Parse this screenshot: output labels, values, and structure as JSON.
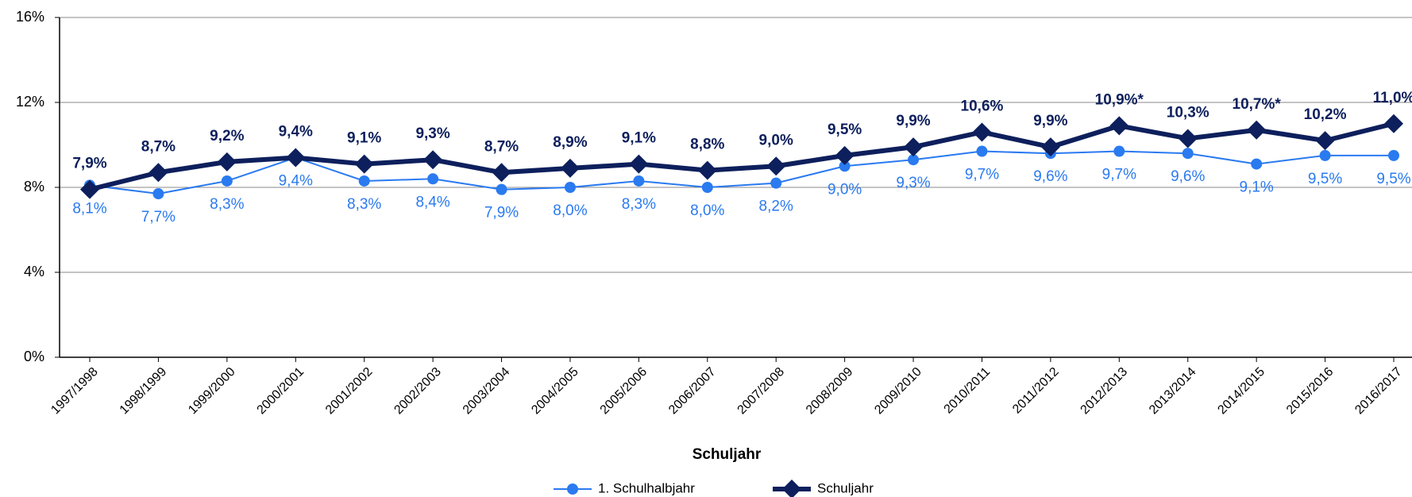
{
  "chart_data": {
    "type": "line",
    "x_label": "Schuljahr",
    "categories": [
      "1997/1998",
      "1998/1999",
      "1999/2000",
      "2000/2001",
      "2001/2002",
      "2002/2003",
      "2003/2004",
      "2004/2005",
      "2005/2006",
      "2006/2007",
      "2007/2008",
      "2008/2009",
      "2009/2010",
      "2010/2011",
      "2011/2012",
      "2012/2013",
      "2013/2014",
      "2014/2015",
      "2015/2016",
      "2016/2017"
    ],
    "series": [
      {
        "name": "1. Schulhalbjahr",
        "color": "#2a7af0",
        "marker": "circle",
        "values": [
          8.1,
          7.7,
          8.3,
          9.4,
          8.3,
          8.4,
          7.9,
          8.0,
          8.3,
          8.0,
          8.2,
          9.0,
          9.3,
          9.7,
          9.6,
          9.7,
          9.6,
          9.1,
          9.5,
          9.5
        ],
        "value_labels": [
          "8,1%",
          "7,7%",
          "8,3%",
          "9,4%",
          "8,3%",
          "8,4%",
          "7,9%",
          "8,0%",
          "8,3%",
          "8,0%",
          "8,2%",
          "9,0%",
          "9,3%",
          "9,7%",
          "9,6%",
          "9,7%",
          "9,6%",
          "9,1%",
          "9,5%",
          "9,5%"
        ]
      },
      {
        "name": "Schuljahr",
        "color": "#0d1f5c",
        "marker": "diamond",
        "values": [
          7.9,
          8.7,
          9.2,
          9.4,
          9.1,
          9.3,
          8.7,
          8.9,
          9.1,
          8.8,
          9.0,
          9.5,
          9.9,
          10.6,
          9.9,
          10.9,
          10.3,
          10.7,
          10.2,
          11.0
        ],
        "value_labels": [
          "7,9%",
          "8,7%",
          "9,2%",
          "9,4%",
          "9,1%",
          "9,3%",
          "8,7%",
          "8,9%",
          "9,1%",
          "8,8%",
          "9,0%",
          "9,5%",
          "9,9%",
          "10,6%",
          "9,9%",
          "10,9%*",
          "10,3%",
          "10,7%*",
          "10,2%",
          "11,0%"
        ]
      }
    ],
    "ylim": [
      0,
      16
    ],
    "yticks": [
      {
        "value": 0,
        "label": "0%"
      },
      {
        "value": 4,
        "label": "4%"
      },
      {
        "value": 8,
        "label": "8%"
      },
      {
        "value": 12,
        "label": "12%"
      },
      {
        "value": 16,
        "label": "16%"
      }
    ],
    "grid": true
  }
}
